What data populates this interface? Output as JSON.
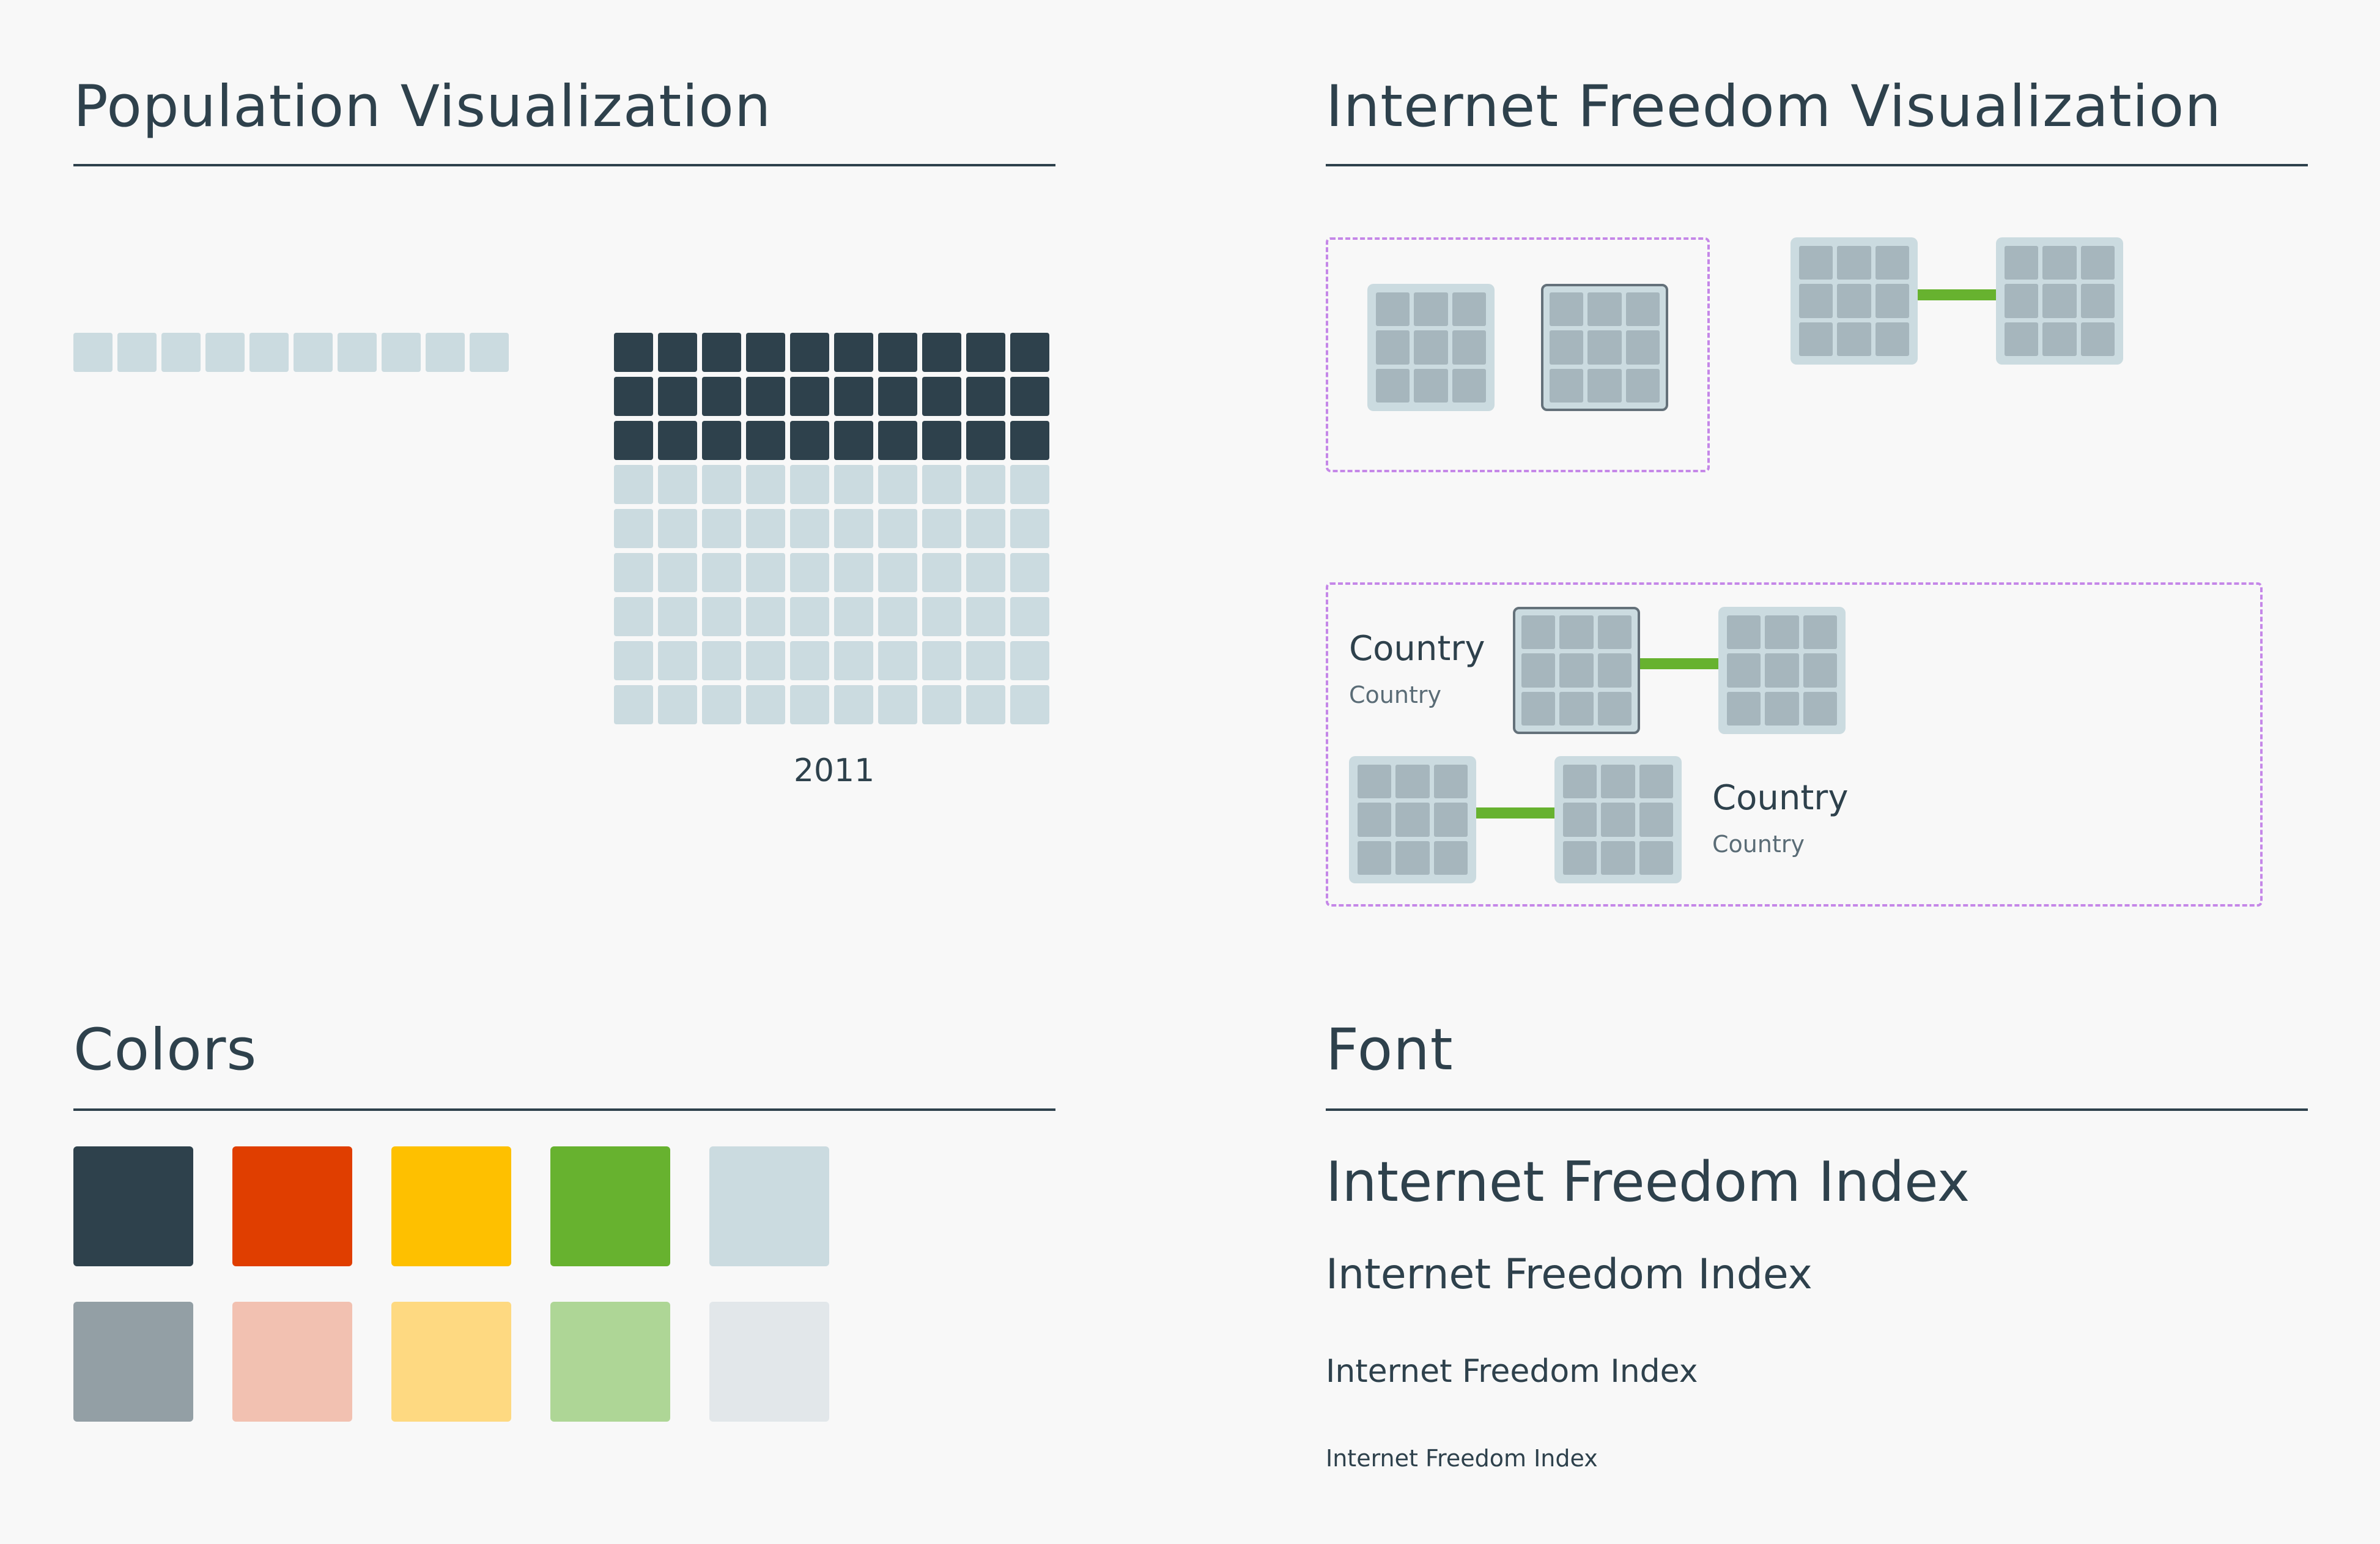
{
  "population": {
    "title": "Population Visualization",
    "row_count": 10,
    "grid_total": 90,
    "grid_filled": 30,
    "year": "2011"
  },
  "freedom": {
    "title": "Internet Freedom Visualization",
    "country_label": "Country",
    "country_sublabel": "Country"
  },
  "colors": {
    "title": "Colors",
    "swatches": [
      "#2e414c",
      "#e03e00",
      "#fec000",
      "#67b22f",
      "#cbdbe0",
      "#939fa5",
      "#f2c1b1",
      "#fed981",
      "#aed696",
      "#e2e7ea"
    ]
  },
  "font": {
    "title": "Font",
    "samples": [
      "Internet Freedom Index",
      "Internet Freedom Index",
      "Internet Freedom Index",
      "Internet Freedom Index"
    ]
  }
}
